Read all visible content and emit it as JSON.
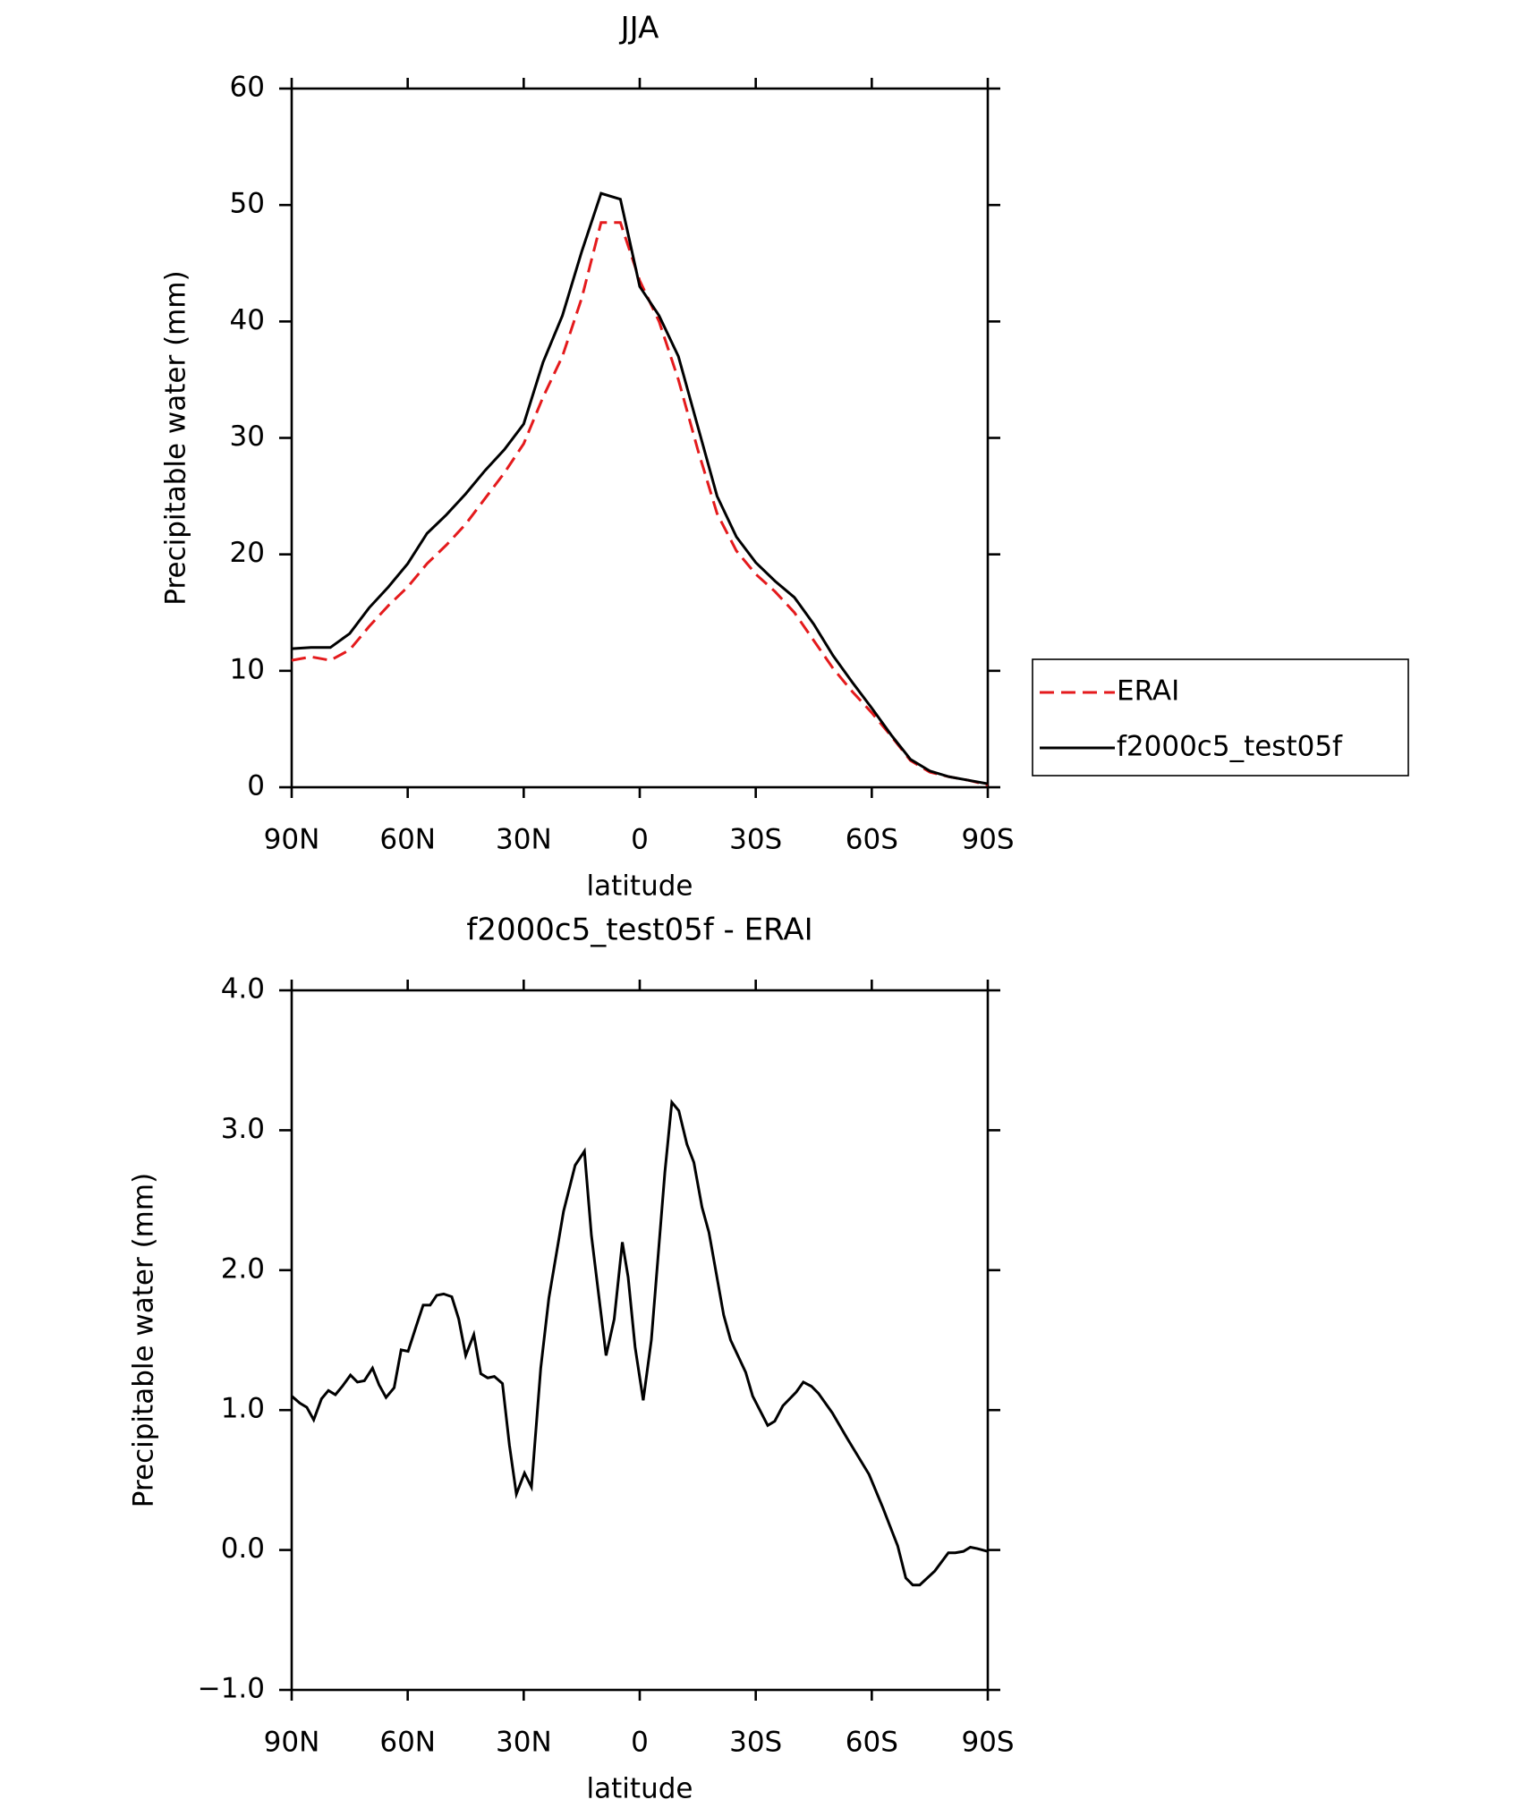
{
  "chart_data": [
    {
      "type": "line",
      "title": "JJA",
      "xlabel": "latitude",
      "ylabel": "Precipitable water (mm)",
      "x": [
        90,
        85,
        80,
        75,
        70,
        65,
        60,
        55,
        50,
        45,
        40,
        35,
        30,
        25,
        20,
        15,
        10,
        5,
        0,
        -5,
        -10,
        -15,
        -20,
        -25,
        -30,
        -35,
        -40,
        -45,
        -50,
        -55,
        -60,
        -65,
        -70,
        -75,
        -80,
        -85,
        -90
      ],
      "series": [
        {
          "name": "ERAI",
          "color": "#e41a1c",
          "linestyle": "dashed",
          "values": [
            10.9,
            11.2,
            10.9,
            11.8,
            13.8,
            15.6,
            17.2,
            19.2,
            20.8,
            22.6,
            24.8,
            27,
            29.5,
            33.5,
            37,
            42,
            48.5,
            48.5,
            43.5,
            40,
            35,
            29,
            23.5,
            20.3,
            18.3,
            16.8,
            15,
            12.6,
            10.2,
            8.2,
            6.4,
            4.4,
            2.3,
            1.3,
            0.9,
            0.6,
            0.2
          ]
        },
        {
          "name": "f2000c5_test05f",
          "color": "#000000",
          "linestyle": "solid",
          "values": [
            11.9,
            12,
            12,
            13.2,
            15.4,
            17.2,
            19.2,
            21.8,
            23.4,
            25.2,
            27.2,
            29,
            31.2,
            36.5,
            40.5,
            46,
            51,
            50.5,
            43,
            40.5,
            37,
            31,
            25,
            21.5,
            19.3,
            17.7,
            16.3,
            14,
            11.3,
            9,
            6.8,
            4.5,
            2.4,
            1.4,
            0.9,
            0.6,
            0.3
          ]
        }
      ],
      "xlim": [
        90,
        -90
      ],
      "xticks": [
        {
          "value": 90,
          "label": "90N"
        },
        {
          "value": 60,
          "label": "60N"
        },
        {
          "value": 30,
          "label": "30N"
        },
        0,
        {
          "value": -30,
          "label": "30S"
        },
        {
          "value": -60,
          "label": "60S"
        },
        {
          "value": -90,
          "label": "90S"
        }
      ],
      "ylim": [
        0,
        60
      ],
      "yticks": [
        0,
        10,
        20,
        30,
        40,
        50,
        60
      ],
      "legend": "right"
    },
    {
      "type": "line",
      "title": "f2000c5_test05f - ERAI",
      "xlabel": "latitude",
      "ylabel": "Precipitable water (mm)",
      "x": [
        90,
        87.9,
        86.1,
        84.3,
        82.3,
        80.5,
        78.7,
        76.9,
        74.8,
        73,
        71.2,
        69.1,
        67.4,
        65.6,
        63.5,
        61.7,
        59.9,
        57.8,
        56,
        54.2,
        52.5,
        50.7,
        48.6,
        46.8,
        45,
        42.9,
        41.1,
        39.3,
        37.6,
        35.5,
        33.7,
        31.9,
        29.8,
        28,
        25.6,
        23.5,
        19.7,
        16.7,
        14.3,
        12.5,
        8.7,
        6.6,
        4.5,
        3,
        1.2,
        -0.9,
        -3,
        -6.5,
        -8.3,
        -10.1,
        -12.2,
        -14,
        -16.1,
        -17.9,
        -21.7,
        -23.5,
        -27.4,
        -29.2,
        -33.1,
        -34.9,
        -37,
        -40.5,
        -42.3,
        -44.4,
        -46.2,
        -49.8,
        -53.6,
        -59.3,
        -62.9,
        -65,
        -66.7,
        -68.8,
        -70.6,
        -72.4,
        -76.3,
        -79.8,
        -81.6,
        -83.7,
        -85.5,
        -87.3,
        -90
      ],
      "series": [
        {
          "name": "f2000c5_test05f - ERAI",
          "color": "#000000",
          "linestyle": "solid",
          "values": [
            1.1,
            1.05,
            1.02,
            0.93,
            1.08,
            1.14,
            1.11,
            1.17,
            1.25,
            1.2,
            1.21,
            1.3,
            1.18,
            1.09,
            1.16,
            1.43,
            1.42,
            1.6,
            1.75,
            1.75,
            1.82,
            1.83,
            1.81,
            1.65,
            1.39,
            1.54,
            1.26,
            1.23,
            1.24,
            1.19,
            0.75,
            0.4,
            0.55,
            0.45,
            1.3,
            1.8,
            2.42,
            2.75,
            2.85,
            2.25,
            1.39,
            1.65,
            2.2,
            1.95,
            1.45,
            1.07,
            1.5,
            2.7,
            3.2,
            3.14,
            2.9,
            2.77,
            2.45,
            2.27,
            1.68,
            1.5,
            1.27,
            1.1,
            0.89,
            0.92,
            1.03,
            1.13,
            1.2,
            1.17,
            1.12,
            0.98,
            0.8,
            0.54,
            0.3,
            0.15,
            0.03,
            -0.2,
            -0.25,
            -0.25,
            -0.15,
            -0.02,
            -0.02,
            -0.01,
            0.02,
            0.01,
            -0.01
          ]
        }
      ],
      "xlim": [
        90,
        -90
      ],
      "xticks": [
        {
          "value": 90,
          "label": "90N"
        },
        {
          "value": 60,
          "label": "60N"
        },
        {
          "value": 30,
          "label": "30N"
        },
        0,
        {
          "value": -30,
          "label": "30S"
        },
        {
          "value": -60,
          "label": "60S"
        },
        {
          "value": -90,
          "label": "90S"
        }
      ],
      "ylim": [
        -1,
        4
      ],
      "yticks": [
        {
          "value": -1,
          "label": "−1.0"
        },
        {
          "value": 0,
          "label": "0.0"
        },
        {
          "value": 1,
          "label": "1.0"
        },
        {
          "value": 2,
          "label": "2.0"
        },
        {
          "value": 3,
          "label": "3.0"
        },
        {
          "value": 4,
          "label": "4.0"
        }
      ]
    }
  ]
}
